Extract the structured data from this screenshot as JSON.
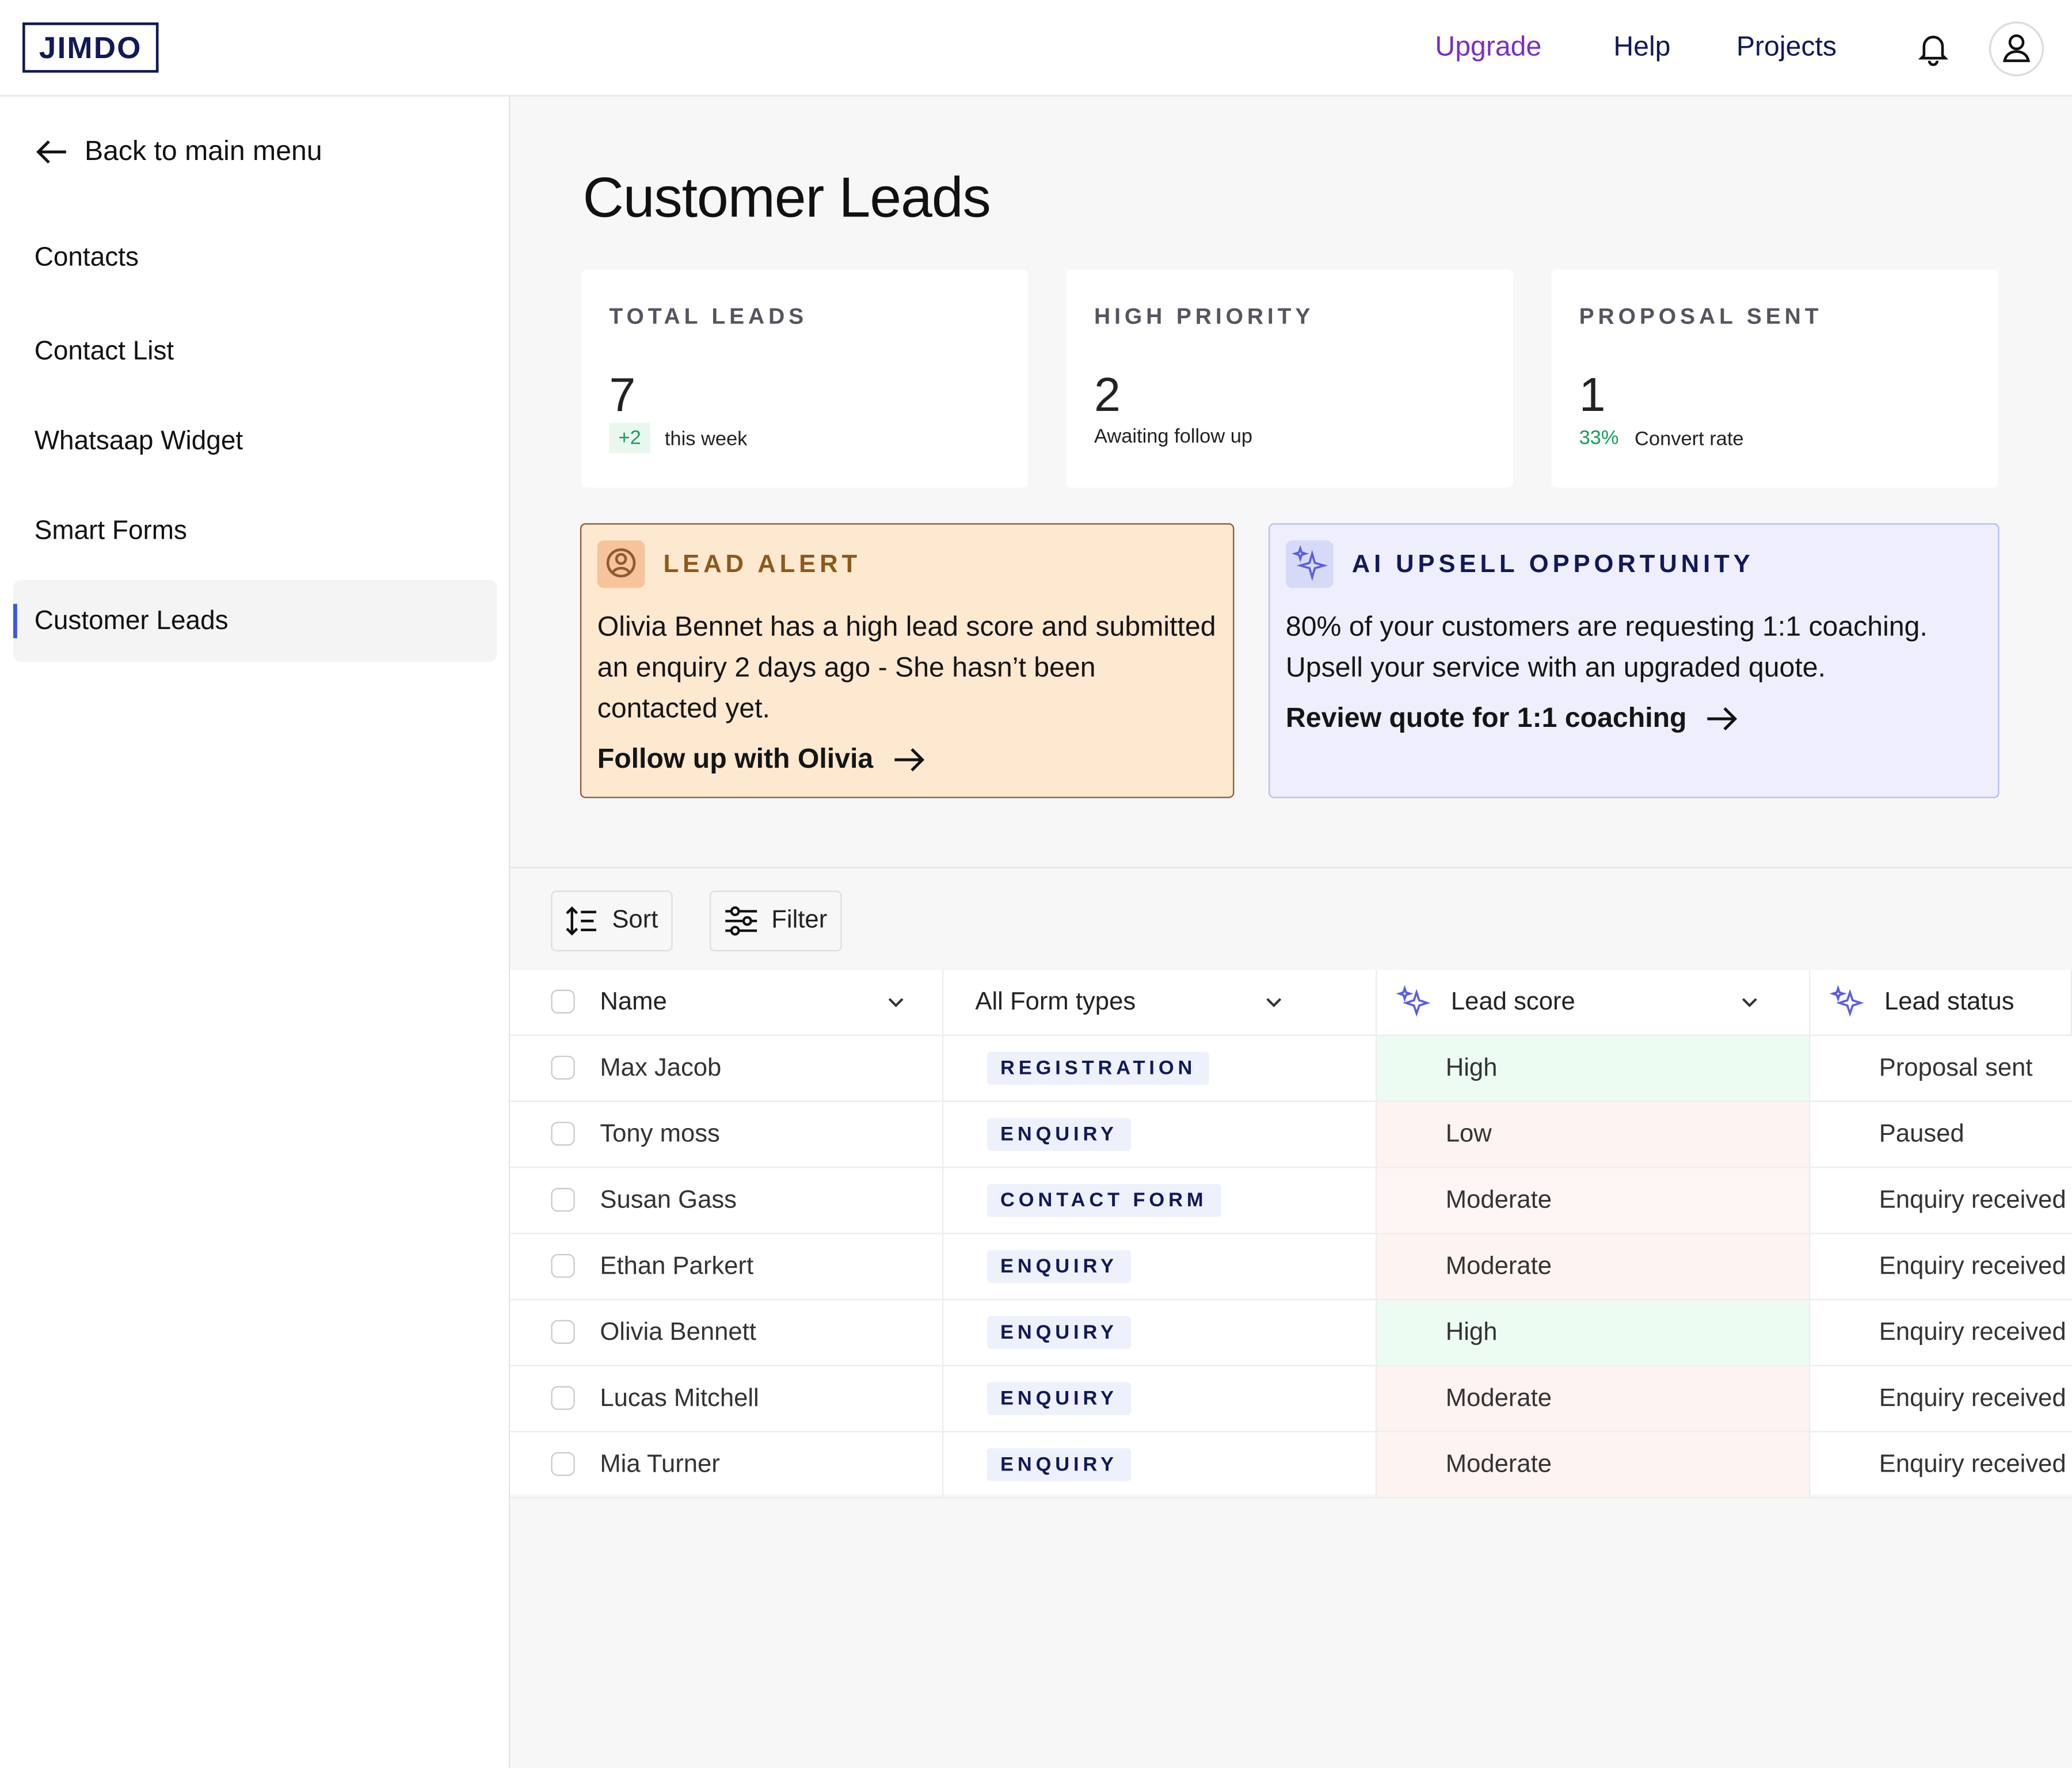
{
  "header": {
    "logo": "JIMDO",
    "nav": [
      "Upgrade",
      "Help",
      "Projects"
    ]
  },
  "sidebar": {
    "back": "Back to main menu",
    "items": [
      "Contacts",
      "Contact List",
      "Whatsaap Widget",
      "Smart Forms",
      "Customer Leads"
    ]
  },
  "title": "Customer Leads",
  "stats": [
    {
      "label": "TOTAL LEADS",
      "value": "7",
      "badge": "+2",
      "note": "this week"
    },
    {
      "label": "HIGH PRIORITY",
      "value": "2",
      "note": "Awaiting follow up"
    },
    {
      "label": "PROPOSAL SENT",
      "value": "1",
      "badge": "33%",
      "note": "Convert rate"
    }
  ],
  "alerts": [
    {
      "title": "LEAD ALERT",
      "body": "Olivia Bennet has a high lead score and submitted an enquiry 2 days ago - She hasn’t been contacted yet.",
      "link": "Follow up with Olivia"
    },
    {
      "title": "AI UPSELL OPPORTUNITY",
      "body": "80% of your customers are requesting 1:1 coaching. Upsell your service with an upgraded quote.",
      "link": "Review quote for 1:1 coaching"
    }
  ],
  "toolbar": [
    "Sort",
    "Filter"
  ],
  "table": {
    "headers": [
      "Name",
      "All Form types",
      "Lead score",
      "Lead status"
    ],
    "rows": [
      {
        "name": "Max Jacob",
        "form_type": "REGISTRATION",
        "lead_score": "High",
        "lead_score_color": "#edfcf2",
        "lead_status": "Proposal sent"
      },
      {
        "name": "Tony moss",
        "form_type": "ENQUIRY",
        "lead_score": "Low",
        "lead_score_color": "#fdf3f1",
        "lead_status": "Paused"
      },
      {
        "name": "Susan Gass",
        "form_type": "CONTACT FORM",
        "lead_score": "Moderate",
        "lead_score_color": "#fdf6f4",
        "lead_status": "Enquiry received"
      },
      {
        "name": "Ethan Parkert",
        "form_type": "ENQUIRY",
        "lead_score": "Moderate",
        "lead_score_color": "#fdf3f1",
        "lead_status": "Enquiry received"
      },
      {
        "name": "Olivia Bennett",
        "form_type": "ENQUIRY",
        "lead_score": "High",
        "lead_score_color": "#edfcf2",
        "lead_status": "Enquiry received"
      },
      {
        "name": "Lucas Mitchell",
        "form_type": "ENQUIRY",
        "lead_score": "Moderate",
        "lead_score_color": "#fdf3f1",
        "lead_status": "Enquiry received"
      },
      {
        "name": "Mia Turner",
        "form_type": "ENQUIRY",
        "lead_score": "Moderate",
        "lead_score_color": "#fdf3f1",
        "lead_status": "Enquiry received"
      }
    ]
  }
}
